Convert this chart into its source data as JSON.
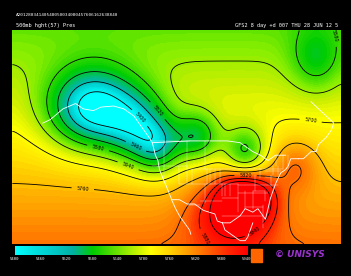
{
  "title_top": "A20128034140548050034080457606162638840",
  "subtitle_left": "500mb hght(57) Pres",
  "subtitle_right": "GFS2 8 day +d 007 THU 28 JUN 12 5",
  "colorbar_labels": [
    "5400",
    "5460",
    "5520",
    "5580",
    "5640",
    "5700",
    "5760",
    "5820",
    "5880",
    "5940"
  ],
  "bg_color": "#000000",
  "unisys_text": "© UNISYS",
  "unisys_color": "#9933CC"
}
